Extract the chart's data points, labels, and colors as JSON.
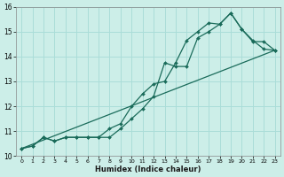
{
  "title": "",
  "xlabel": "Humidex (Indice chaleur)",
  "bg_color": "#cceee8",
  "grid_color": "#aaddd8",
  "line_color": "#1a6b5a",
  "xlim": [
    -0.5,
    23.5
  ],
  "ylim": [
    10,
    16
  ],
  "xticks": [
    0,
    1,
    2,
    3,
    4,
    5,
    6,
    7,
    8,
    9,
    10,
    11,
    12,
    13,
    14,
    15,
    16,
    17,
    18,
    19,
    20,
    21,
    22,
    23
  ],
  "yticks": [
    10,
    11,
    12,
    13,
    14,
    15,
    16
  ],
  "line1_x": [
    0,
    1,
    2,
    3,
    4,
    5,
    6,
    7,
    8,
    9,
    10,
    11,
    12,
    13,
    14,
    15,
    16,
    17,
    18,
    19,
    20,
    21,
    22,
    23
  ],
  "line1_y": [
    10.3,
    10.4,
    10.75,
    10.6,
    10.75,
    10.75,
    10.75,
    10.75,
    10.75,
    11.1,
    11.5,
    11.9,
    12.4,
    13.75,
    13.6,
    13.6,
    14.75,
    15.0,
    15.3,
    15.75,
    15.1,
    14.65,
    14.3,
    14.25
  ],
  "line2_x": [
    0,
    1,
    2,
    3,
    4,
    5,
    6,
    7,
    8,
    9,
    10,
    11,
    12,
    13,
    14,
    15,
    16,
    17,
    18,
    19,
    20,
    21,
    22,
    23
  ],
  "line2_y": [
    10.3,
    10.4,
    10.75,
    10.6,
    10.75,
    10.75,
    10.75,
    10.75,
    11.1,
    11.3,
    12.0,
    12.5,
    12.9,
    13.0,
    13.75,
    14.65,
    15.0,
    15.35,
    15.3,
    15.75,
    15.1,
    14.6,
    14.6,
    14.25
  ],
  "line3_x": [
    0,
    23
  ],
  "line3_y": [
    10.3,
    14.25
  ]
}
